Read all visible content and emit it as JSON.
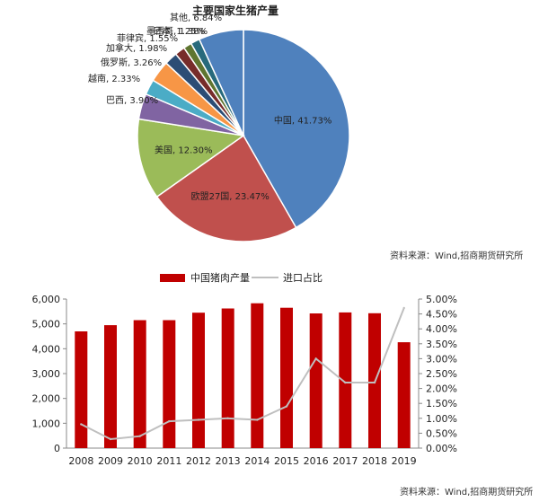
{
  "colors": {
    "bar": "#c00000",
    "ratio_line": "#bfbfbf",
    "pie": [
      "#4f81bd",
      "#c0504d",
      "#9bbb59",
      "#8064a2",
      "#4bacc6",
      "#f79646",
      "#2c4d75",
      "#772c2a",
      "#5f7530",
      "#276a7c"
    ]
  },
  "chart_data": [
    {
      "type": "pie",
      "title": "主要国家生猪产量",
      "slices": [
        {
          "label": "中国",
          "value": 41.73,
          "text": "中国, 41.73%"
        },
        {
          "label": "欧盟27国",
          "value": 23.47,
          "text": "欧盟27国, 23.47%"
        },
        {
          "label": "美国",
          "value": 12.3,
          "text": "美国, 12.30%"
        },
        {
          "label": "巴西",
          "value": 3.9,
          "text": "巴西, 3.90%"
        },
        {
          "label": "越南",
          "value": 2.33,
          "text": "越南, 2.33%"
        },
        {
          "label": "俄罗斯",
          "value": 3.26,
          "text": "俄罗斯, 3.26%"
        },
        {
          "label": "加拿大",
          "value": 1.98,
          "text": "加拿大, 1.98%"
        },
        {
          "label": "菲律宾",
          "value": 1.55,
          "text": "菲律宾, 1.55%"
        },
        {
          "label": "日本",
          "value": 1.25,
          "text": "日本, 1.25%"
        },
        {
          "label": "墨西哥",
          "value": 1.38,
          "text": "墨西哥, 1.38%"
        },
        {
          "label": "其他",
          "value": 6.84,
          "text": "其他, 6.84%"
        }
      ],
      "source": "资料来源：Wind,招商期货研究所"
    },
    {
      "type": "bar",
      "legend": [
        "中国猪肉产量",
        "进口占比"
      ],
      "categories": [
        "2008",
        "2009",
        "2010",
        "2011",
        "2012",
        "2013",
        "2014",
        "2015",
        "2016",
        "2017",
        "2018",
        "2019"
      ],
      "series": [
        {
          "name": "中国猪肉产量",
          "type": "bar",
          "axis": "left",
          "values": [
            4700,
            4950,
            5150,
            5150,
            5450,
            5620,
            5830,
            5650,
            5420,
            5460,
            5430,
            4260
          ]
        },
        {
          "name": "进口占比",
          "type": "line",
          "axis": "right",
          "values": [
            0.8,
            0.3,
            0.4,
            0.9,
            0.95,
            1.0,
            0.95,
            1.4,
            3.0,
            2.2,
            2.2,
            4.7
          ]
        }
      ],
      "ylim_left": [
        0,
        6000
      ],
      "yticks_left": [
        "0",
        "1,000",
        "2,000",
        "3,000",
        "4,000",
        "5,000",
        "6,000"
      ],
      "ylim_right": [
        0,
        5
      ],
      "yticks_right": [
        "0.00%",
        "0.50%",
        "1.00%",
        "1.50%",
        "2.00%",
        "2.50%",
        "3.00%",
        "3.50%",
        "4.00%",
        "4.50%",
        "5.00%"
      ],
      "source": "资料来源：Wind,招商期货研究所"
    }
  ]
}
